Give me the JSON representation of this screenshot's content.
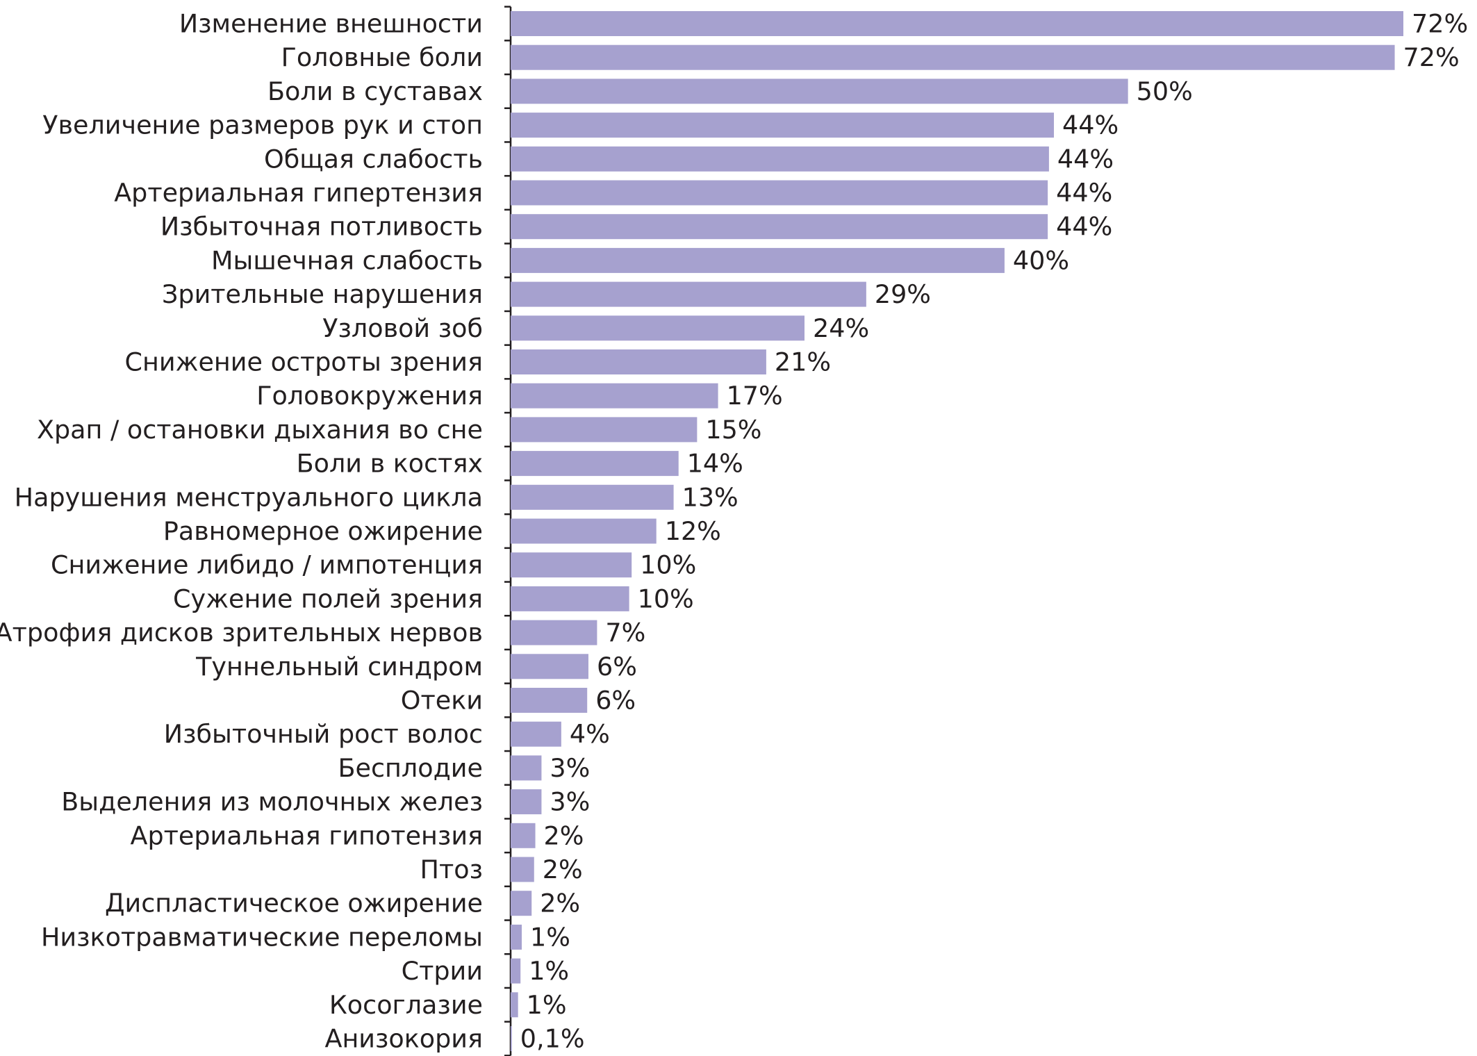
{
  "chart_data": {
    "type": "bar",
    "orientation": "horizontal",
    "categories": [
      "Изменение внешности",
      "Головные боли",
      "Боли в суставах",
      "Увеличение размеров рук и стоп",
      "Общая слабость",
      "Артериальная гипертензия",
      "Избыточная потливость",
      "Мышечная слабость",
      "Зрительные нарушения",
      "Узловой зоб",
      "Снижение остроты зрения",
      "Головокружения",
      "Храп / остановки дыхания во сне",
      "Боли в костях",
      "Нарушения менструального цикла",
      "Равномерное ожирение",
      "Снижение либидо / импотенция",
      "Сужение полей зрения",
      "Атрофия дисков зрительных нервов",
      "Туннельный синдром",
      "Отеки",
      "Избыточный рост волос",
      "Бесплодие",
      "Выделения из молочных желез",
      "Артериальная гипотензия",
      "Птоз",
      "Диспластическое ожирение",
      "Низкотравматические переломы",
      "Стрии",
      "Косоглазие",
      "Анизокория"
    ],
    "values": [
      72.3,
      71.6,
      50,
      44,
      43.6,
      43.5,
      43.5,
      40,
      28.8,
      23.8,
      20.7,
      16.8,
      15.1,
      13.6,
      13.2,
      11.8,
      9.8,
      9.6,
      7,
      6.3,
      6.2,
      4.1,
      2.5,
      2.5,
      2,
      1.9,
      1.7,
      0.9,
      0.8,
      0.6,
      0.1
    ],
    "value_labels": [
      "72%",
      "72%",
      "50%",
      "44%",
      "44%",
      "44%",
      "44%",
      "40%",
      "29%",
      "24%",
      "21%",
      "17%",
      "15%",
      "14%",
      "13%",
      "12%",
      "10%",
      "10%",
      "7%",
      "6%",
      "6%",
      "4%",
      "3%",
      "3%",
      "2%",
      "2%",
      "2%",
      "1%",
      "1%",
      "1%",
      "0,1%"
    ],
    "xlim": [
      0,
      72.3
    ],
    "grid": false,
    "legend": "none",
    "title": "",
    "xlabel": "",
    "ylabel": "",
    "colors": {
      "bar": "#a6a1cf",
      "text": "#231f20",
      "axis": "#231f20"
    }
  }
}
